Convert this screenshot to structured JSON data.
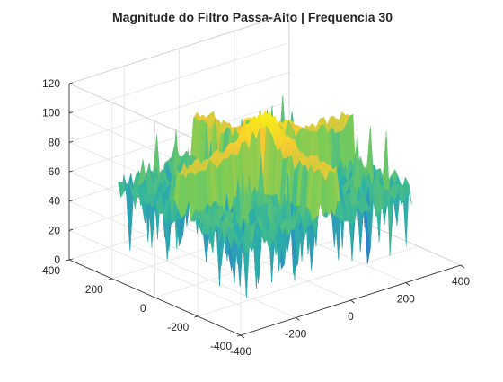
{
  "chart_data": {
    "type": "surface",
    "title": "Magnitude do Filtro Passa-Alto | Frequencia 30",
    "xlabel": "",
    "ylabel": "",
    "zlabel": "",
    "x_ticks": [
      -400,
      -200,
      0,
      200,
      400
    ],
    "y_ticks": [
      -400,
      -200,
      0,
      200,
      400
    ],
    "z_ticks": [
      0,
      20,
      40,
      60,
      80,
      100,
      120
    ],
    "xlim": [
      -400,
      400
    ],
    "ylim": [
      -400,
      400
    ],
    "zlim": [
      0,
      120
    ],
    "grid": true,
    "colormap": [
      "#3e26a8",
      "#2f77d1",
      "#2cb3a5",
      "#7ccc55",
      "#f5c932",
      "#f9fb0e"
    ],
    "surface": {
      "extent_x": [
        -300,
        300
      ],
      "extent_y": [
        -300,
        300
      ],
      "base_level": 50,
      "ridge_level": 80,
      "ridge_width": 30,
      "center_peak": 100,
      "min_dips": 5,
      "noise_spikes_max": 90
    }
  }
}
